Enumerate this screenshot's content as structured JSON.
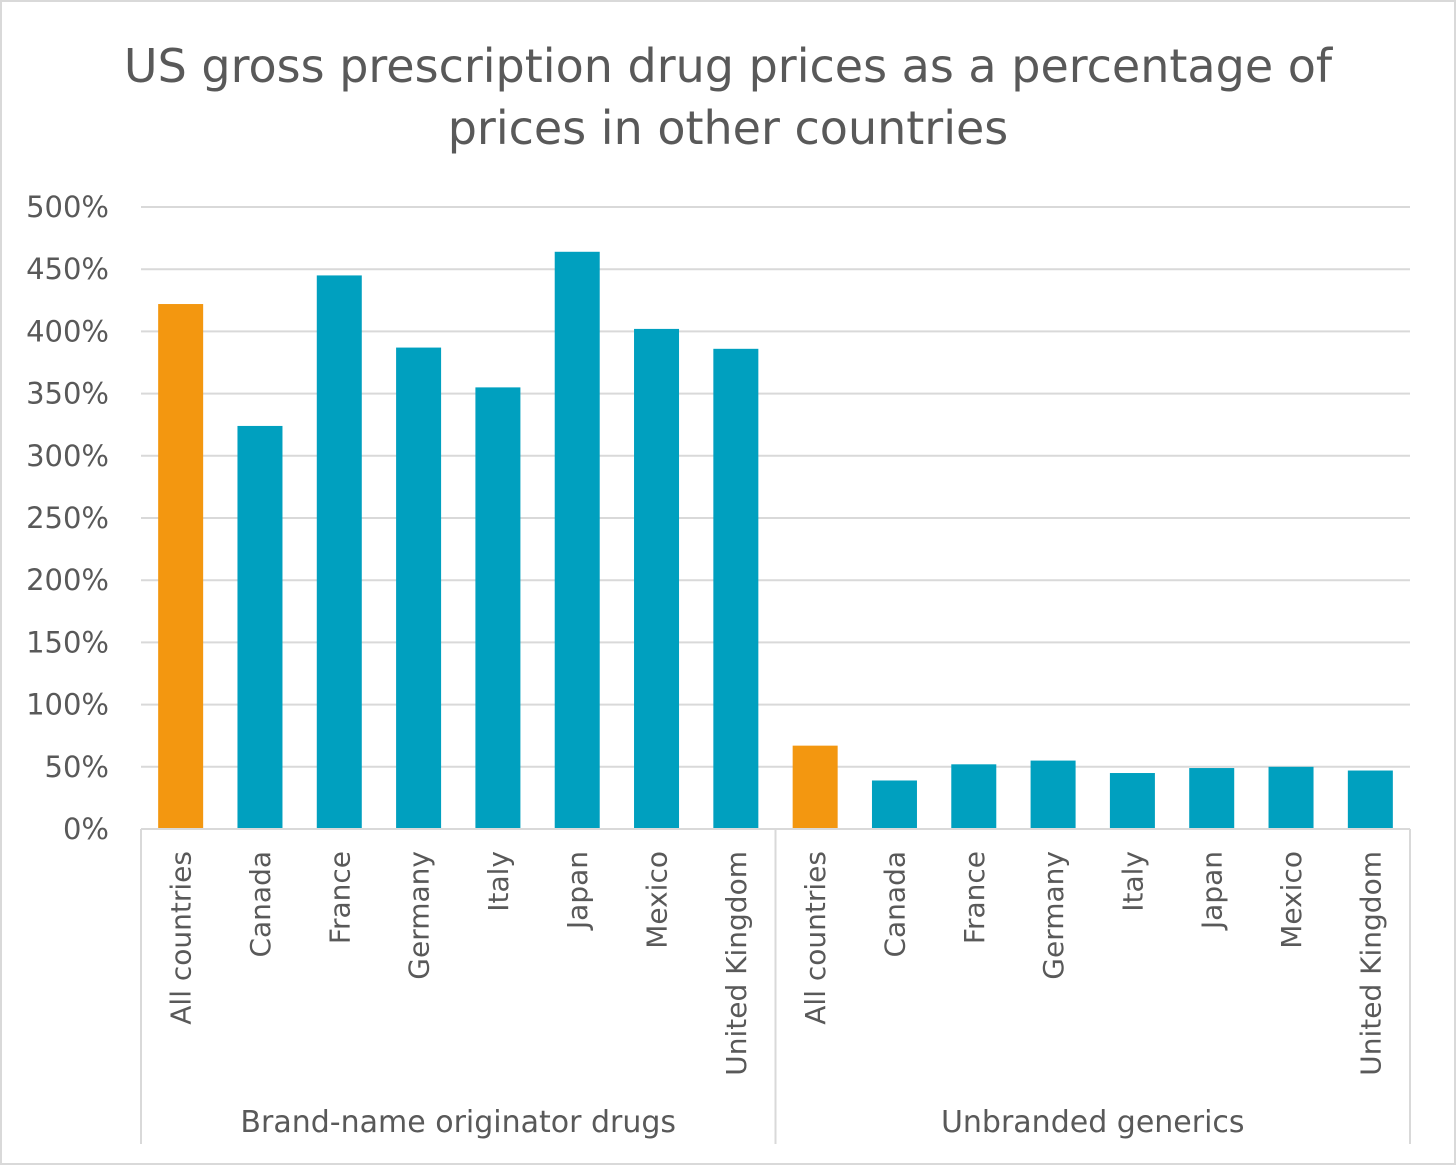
{
  "chart_data": {
    "type": "bar",
    "title": [
      "US gross prescription drug prices as a percentage of",
      "prices in other countries"
    ],
    "xlabel": "",
    "ylabel": "",
    "ylim": [
      0,
      500
    ],
    "y_ticks": [
      "0%",
      "50%",
      "100%",
      "150%",
      "200%",
      "250%",
      "300%",
      "350%",
      "400%",
      "450%",
      "500%"
    ],
    "grid": true,
    "colors": {
      "highlight": "#f39710",
      "bar": "#00a0bf",
      "grid": "#d9d9d9",
      "text": "#595959"
    },
    "groups": [
      {
        "name": "Brand-name originator drugs",
        "categories": [
          "All countries",
          "Canada",
          "France",
          "Germany",
          "Italy",
          "Japan",
          "Mexico",
          "United Kingdom"
        ],
        "values": [
          422,
          324,
          445,
          387,
          355,
          464,
          402,
          386
        ]
      },
      {
        "name": "Unbranded generics",
        "categories": [
          "All countries",
          "Canada",
          "France",
          "Germany",
          "Italy",
          "Japan",
          "Mexico",
          "United Kingdom"
        ],
        "values": [
          67,
          39,
          52,
          55,
          45,
          49,
          50,
          47
        ]
      }
    ]
  }
}
